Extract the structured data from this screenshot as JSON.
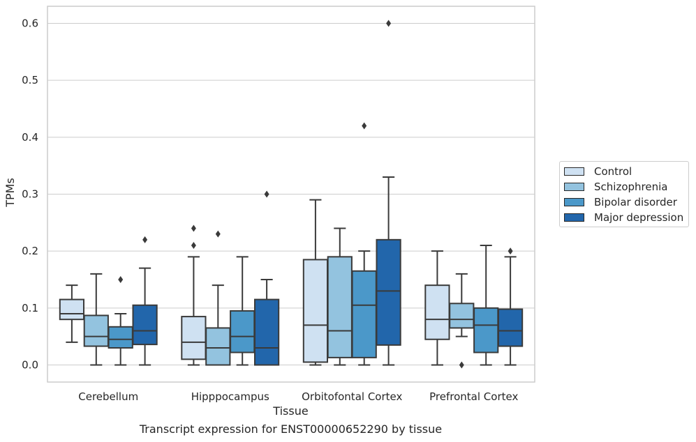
{
  "chart_data": {
    "type": "box",
    "title": "",
    "caption": "Transcript expression for ENST00000652290 by tissue",
    "xlabel": "Tissue",
    "ylabel": "TPMs",
    "ylim": [
      -0.03,
      0.63
    ],
    "yticks": [
      "0.0",
      "0.1",
      "0.2",
      "0.3",
      "0.4",
      "0.5",
      "0.6"
    ],
    "grid": "horizontal",
    "legend_position": "center-right",
    "categories": [
      "Cerebellum",
      "Hipppocampus",
      "Orbitofontal Cortex",
      "Prefrontal Cortex"
    ],
    "series": [
      {
        "name": "Control",
        "color": "#cfe1f2",
        "boxes": [
          {
            "whislo": 0.04,
            "q1": 0.08,
            "med": 0.09,
            "q3": 0.115,
            "whishi": 0.14,
            "fliers": []
          },
          {
            "whislo": 0.0,
            "q1": 0.01,
            "med": 0.04,
            "q3": 0.085,
            "whishi": 0.19,
            "fliers": [
              0.21,
              0.24
            ]
          },
          {
            "whislo": 0.0,
            "q1": 0.005,
            "med": 0.07,
            "q3": 0.185,
            "whishi": 0.29,
            "fliers": []
          },
          {
            "whislo": 0.0,
            "q1": 0.045,
            "med": 0.08,
            "q3": 0.14,
            "whishi": 0.2,
            "fliers": []
          }
        ]
      },
      {
        "name": "Schizophrenia",
        "color": "#93c3df",
        "boxes": [
          {
            "whislo": 0.0,
            "q1": 0.033,
            "med": 0.05,
            "q3": 0.087,
            "whishi": 0.16,
            "fliers": []
          },
          {
            "whislo": 0.0,
            "q1": 0.0,
            "med": 0.03,
            "q3": 0.065,
            "whishi": 0.14,
            "fliers": [
              0.23
            ]
          },
          {
            "whislo": 0.0,
            "q1": 0.013,
            "med": 0.06,
            "q3": 0.19,
            "whishi": 0.24,
            "fliers": []
          },
          {
            "whislo": 0.05,
            "q1": 0.065,
            "med": 0.08,
            "q3": 0.108,
            "whishi": 0.16,
            "fliers": [
              0.0
            ]
          }
        ]
      },
      {
        "name": "Bipolar disorder",
        "color": "#4b98c9",
        "boxes": [
          {
            "whislo": 0.0,
            "q1": 0.03,
            "med": 0.045,
            "q3": 0.067,
            "whishi": 0.09,
            "fliers": [
              0.15
            ]
          },
          {
            "whislo": 0.0,
            "q1": 0.022,
            "med": 0.05,
            "q3": 0.095,
            "whishi": 0.19,
            "fliers": []
          },
          {
            "whislo": 0.0,
            "q1": 0.013,
            "med": 0.105,
            "q3": 0.165,
            "whishi": 0.2,
            "fliers": [
              0.42
            ]
          },
          {
            "whislo": 0.0,
            "q1": 0.022,
            "med": 0.07,
            "q3": 0.1,
            "whishi": 0.21,
            "fliers": []
          }
        ]
      },
      {
        "name": "Major depression",
        "color": "#2266ab",
        "boxes": [
          {
            "whislo": 0.0,
            "q1": 0.036,
            "med": 0.06,
            "q3": 0.105,
            "whishi": 0.17,
            "fliers": [
              0.22
            ]
          },
          {
            "whislo": 0.0,
            "q1": 0.0,
            "med": 0.03,
            "q3": 0.115,
            "whishi": 0.15,
            "fliers": [
              0.3
            ]
          },
          {
            "whislo": 0.0,
            "q1": 0.035,
            "med": 0.13,
            "q3": 0.22,
            "whishi": 0.33,
            "fliers": [
              0.6
            ]
          },
          {
            "whislo": 0.0,
            "q1": 0.033,
            "med": 0.06,
            "q3": 0.098,
            "whishi": 0.19,
            "fliers": [
              0.2
            ]
          }
        ]
      }
    ]
  }
}
